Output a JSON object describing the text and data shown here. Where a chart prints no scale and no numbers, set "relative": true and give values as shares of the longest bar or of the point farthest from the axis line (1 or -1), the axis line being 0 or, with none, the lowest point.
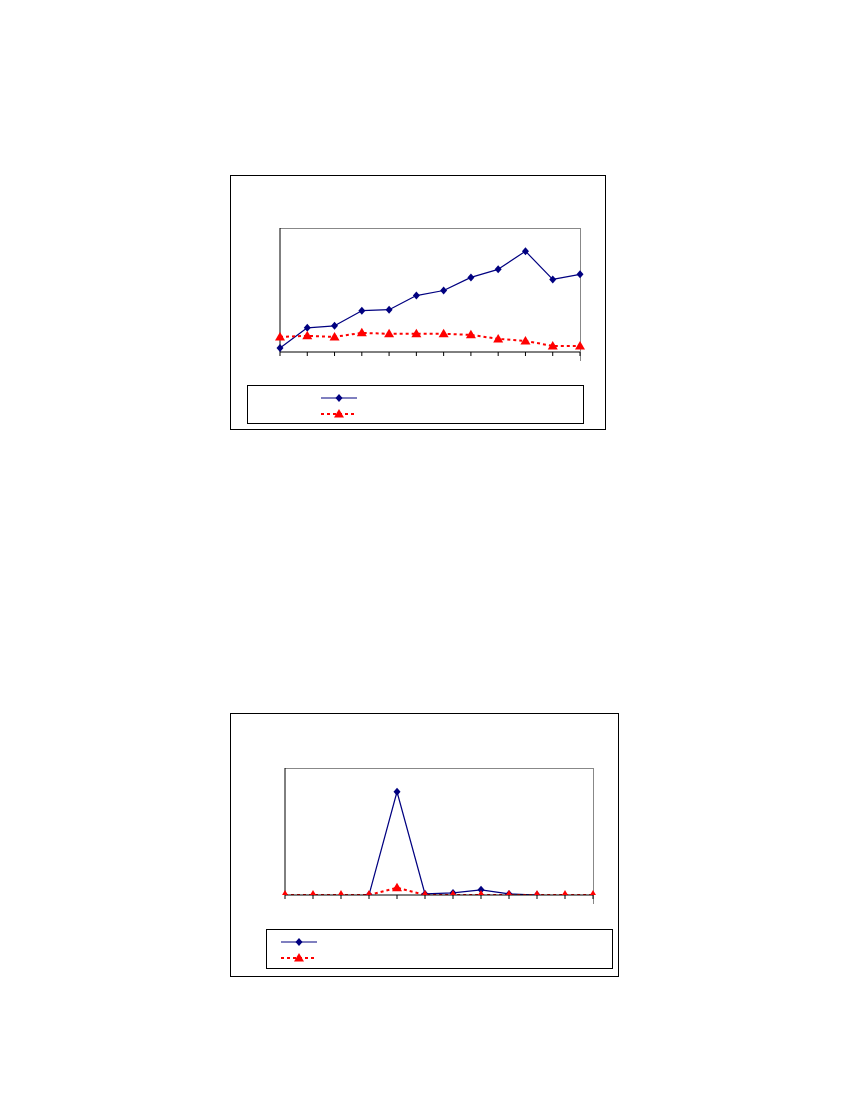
{
  "chart_data": [
    {
      "type": "line",
      "relative": true,
      "categories": [
        null,
        null,
        null,
        null,
        null,
        null,
        null,
        null,
        null,
        null,
        null,
        null
      ],
      "grid": false,
      "series": [
        {
          "color": "#000080",
          "marker": "diamond",
          "line_style": "solid",
          "values": [
            0.04,
            0.24,
            0.26,
            0.41,
            0.42,
            0.56,
            0.61,
            0.74,
            0.82,
            1,
            0.72,
            0.77
          ]
        },
        {
          "color": "#ff0000",
          "marker": "triangle",
          "line_style": "dashed",
          "values": [
            0.15,
            0.16,
            0.15,
            0.19,
            0.18,
            0.18,
            0.18,
            0.17,
            0.13,
            0.11,
            0.06,
            0.06
          ]
        }
      ]
    },
    {
      "type": "line",
      "relative": true,
      "categories": [
        null,
        null,
        null,
        null,
        null,
        null,
        null,
        null,
        null,
        null,
        null,
        null
      ],
      "grid": false,
      "series": [
        {
          "color": "#000080",
          "marker": "diamond",
          "line_style": "solid",
          "values": [
            null,
            null,
            null,
            0,
            1,
            0.01,
            0.02,
            0.05,
            0.01,
            0,
            null,
            null
          ]
        },
        {
          "color": "#ff0000",
          "marker": "triangle",
          "line_style": "dashed",
          "values": [
            0,
            0,
            0,
            0,
            0.07,
            0,
            0,
            0,
            0,
            0,
            0,
            0
          ]
        }
      ]
    }
  ]
}
